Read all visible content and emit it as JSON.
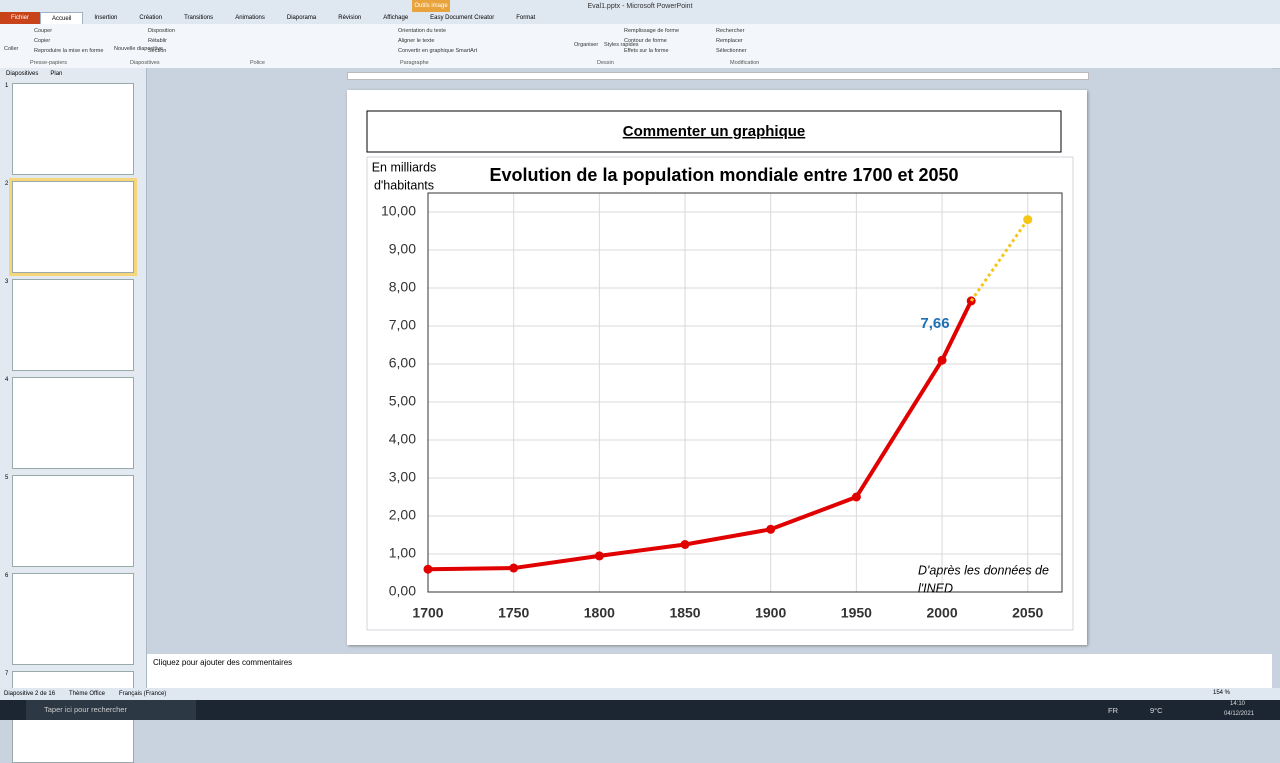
{
  "window": {
    "title": "Eval1.pptx - Microsoft PowerPoint",
    "context_tab": "Outils image"
  },
  "ribbon": {
    "tabs": [
      "Fichier",
      "Accueil",
      "Insertion",
      "Création",
      "Transitions",
      "Animations",
      "Diaporama",
      "Révision",
      "Affichage",
      "Easy Document Creator",
      "Format"
    ],
    "groups": [
      "Presse-papiers",
      "Diapositives",
      "Police",
      "Paragraphe",
      "Dessin",
      "Modification"
    ],
    "clipboard": [
      "Coller",
      "Couper",
      "Copier",
      "Reproduire la mise en forme"
    ],
    "slides": [
      "Nouvelle diapositive",
      "Disposition",
      "Rétablir",
      "Section"
    ],
    "paragraph": [
      "Orientation du texte",
      "Aligner le texte",
      "Convertir en graphique SmartArt"
    ],
    "drawing": [
      "Organiser",
      "Styles rapides",
      "Remplissage de forme",
      "Contour de forme",
      "Effets sur la forme"
    ],
    "editing": [
      "Rechercher",
      "Remplacer",
      "Sélectionner"
    ]
  },
  "panel": {
    "tabs": [
      "Diapositives",
      "Plan"
    ],
    "slide_numbers": [
      "1",
      "2",
      "3",
      "4",
      "5",
      "6",
      "7"
    ]
  },
  "slide": {
    "heading": "Commenter un graphique"
  },
  "chart_data": {
    "type": "line",
    "title": "Evolution de la population mondiale entre 1700 et 2050",
    "ylabel_lines": [
      "En milliards",
      "d'habitants"
    ],
    "series": [
      {
        "color": "#e00000",
        "x": [
          1700,
          1750,
          1800,
          1850,
          1900,
          1950,
          2000,
          2017
        ],
        "values": [
          0.6,
          0.63,
          0.95,
          1.25,
          1.65,
          2.5,
          6.1,
          7.66
        ]
      },
      {
        "color": "#f5c518",
        "dashed": true,
        "x": [
          2017,
          2050
        ],
        "values": [
          7.66,
          9.8
        ]
      }
    ],
    "annotation": "7,66",
    "source_lines": [
      "D'après les données de",
      "l'INED"
    ],
    "xlim": [
      1700,
      2070
    ],
    "xticks": [
      1700,
      1750,
      1800,
      1850,
      1900,
      1950,
      2000,
      2050
    ],
    "ylim": [
      0,
      10.5
    ],
    "yticks": [
      {
        "value": 0,
        "label": "0,00"
      },
      {
        "value": 1,
        "label": "1,00"
      },
      {
        "value": 2,
        "label": "2,00"
      },
      {
        "value": 3,
        "label": "3,00"
      },
      {
        "value": 4,
        "label": "4,00"
      },
      {
        "value": 5,
        "label": "5,00"
      },
      {
        "value": 6,
        "label": "6,00"
      },
      {
        "value": 7,
        "label": "7,00"
      },
      {
        "value": 8,
        "label": "8,00"
      },
      {
        "value": 9,
        "label": "9,00"
      },
      {
        "value": 10,
        "label": "10,00"
      }
    ],
    "grid": true
  },
  "notes": "Cliquez pour ajouter des commentaires",
  "status": {
    "items": [
      "Diapositive 2 de 16",
      "Thème Office",
      "Français (France)"
    ],
    "zoom": "154 %"
  },
  "taskbar": {
    "search": "Taper ici pour rechercher",
    "weather": "9°C",
    "lang": "FR",
    "time": "14:10",
    "date": "04/12/2021"
  }
}
